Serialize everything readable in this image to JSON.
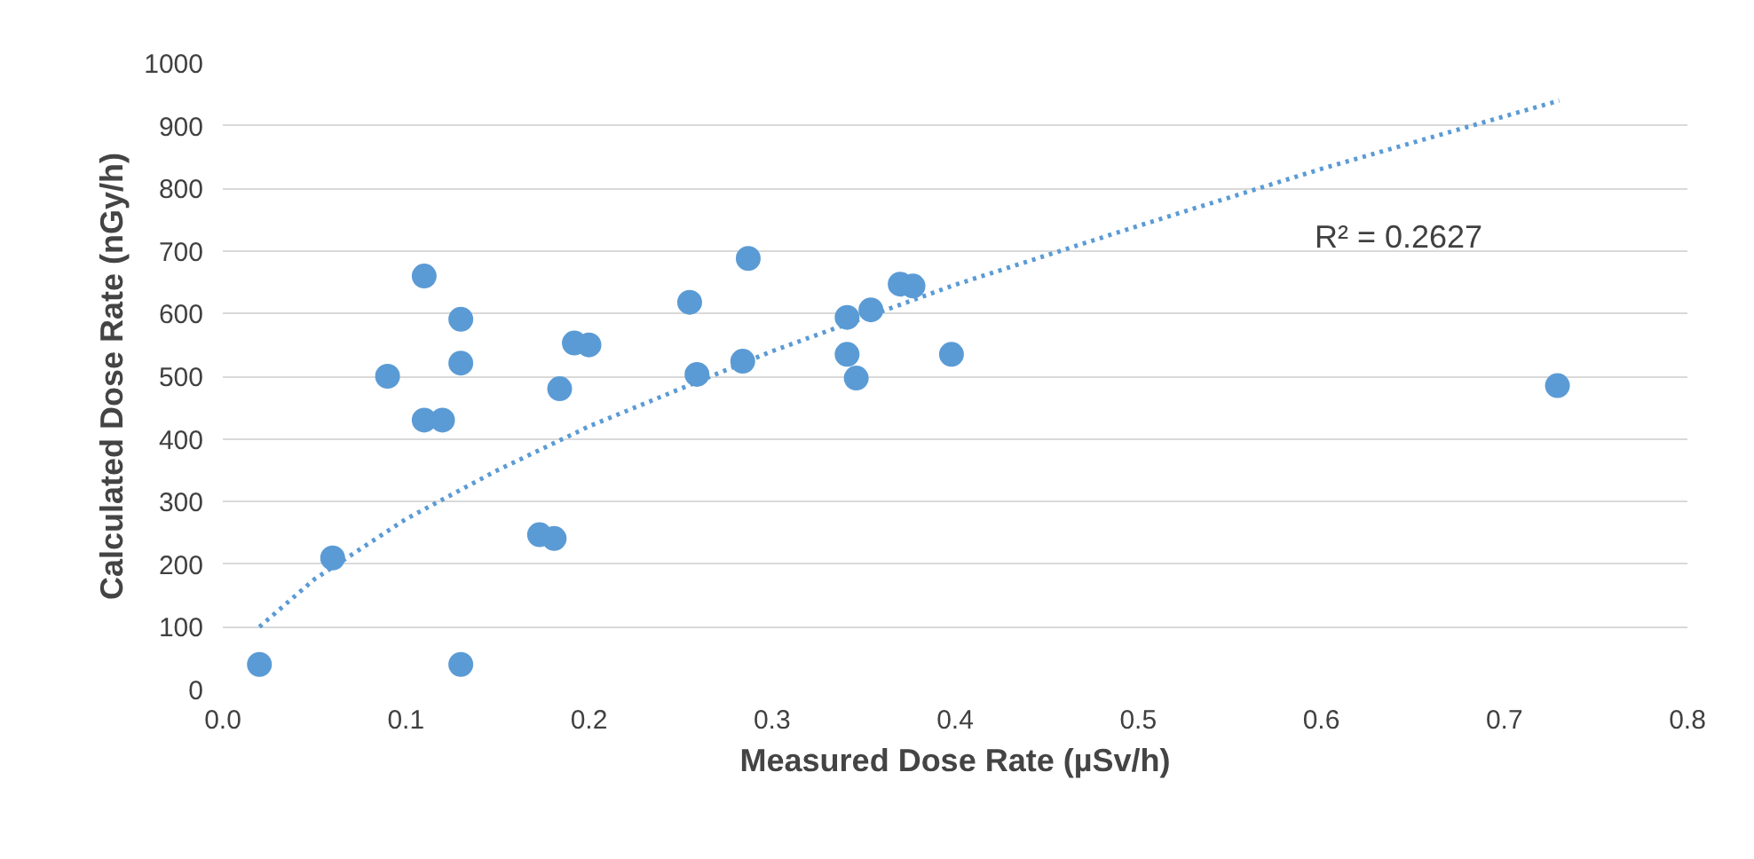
{
  "chart_data": {
    "type": "scatter",
    "xlabel": "Measured Dose Rate (µSv/h)",
    "ylabel": "Calculated Dose Rate (nGy/h)",
    "xlim": [
      0,
      0.8
    ],
    "ylim": [
      0,
      1000
    ],
    "xticks": [
      {
        "value": 0,
        "label": "0.0"
      },
      0.1,
      0.2,
      0.3,
      0.4,
      0.5,
      0.6,
      0.7,
      0.8
    ],
    "yticks": [
      0,
      100,
      200,
      300,
      400,
      500,
      600,
      700,
      800,
      900,
      1000
    ],
    "grid": "y",
    "series": [
      {
        "color": "#5b9bd5",
        "marker": "circle",
        "x": [
          0.02,
          0.06,
          0.09,
          0.11,
          0.11,
          0.12,
          0.13,
          0.13,
          0.13,
          0.173,
          0.181,
          0.184,
          0.192,
          0.2,
          0.255,
          0.259,
          0.284,
          0.287,
          0.341,
          0.341,
          0.346,
          0.354,
          0.37,
          0.377,
          0.398,
          0.729
        ],
        "values": [
          40,
          210,
          500,
          660,
          430,
          430,
          591,
          521,
          40,
          247,
          241,
          480,
          553,
          550,
          618,
          503,
          524,
          688,
          594,
          535,
          497,
          606,
          647,
          644,
          535,
          485
        ]
      },
      {
        "type": "line",
        "color": "#5b9bd5",
        "line_style": "dotted",
        "x": [
          0.02,
          0.05,
          0.1,
          0.15,
          0.2,
          0.3,
          0.4,
          0.5,
          0.6,
          0.73
        ],
        "values": [
          100,
          176,
          272,
          350,
          420,
          540,
          646,
          740,
          831,
          940
        ]
      }
    ],
    "annotations": [
      "R² = 0.2627"
    ]
  }
}
